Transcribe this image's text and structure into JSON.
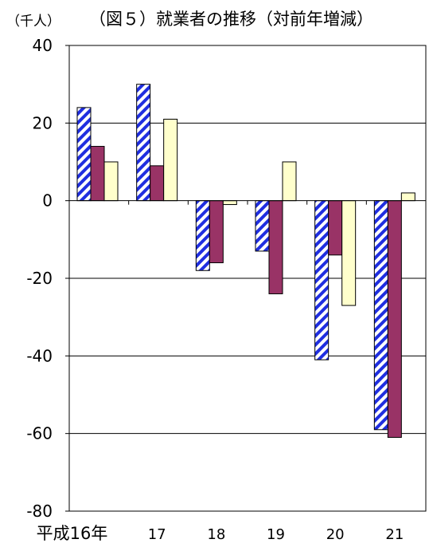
{
  "chart_data": {
    "type": "bar",
    "title": "（図５）就業者の推移（対前年増減）",
    "ylabel": "（千人）",
    "categories": [
      "平成16年",
      "17",
      "18",
      "19",
      "20",
      "21"
    ],
    "series": [
      {
        "values": [
          24,
          30,
          -18,
          -13,
          -41,
          -59
        ],
        "fill": "hatch-blue"
      },
      {
        "values": [
          14,
          9,
          -16,
          -24,
          -14,
          -61
        ],
        "fill": "#993366"
      },
      {
        "values": [
          10,
          21,
          -1,
          10,
          -27,
          2
        ],
        "fill": "#ffffcc"
      }
    ],
    "ylim": [
      -80,
      40
    ],
    "yticks": [
      40,
      20,
      0,
      -20,
      -40,
      -60,
      -80
    ],
    "grid": true,
    "legend": "none"
  }
}
